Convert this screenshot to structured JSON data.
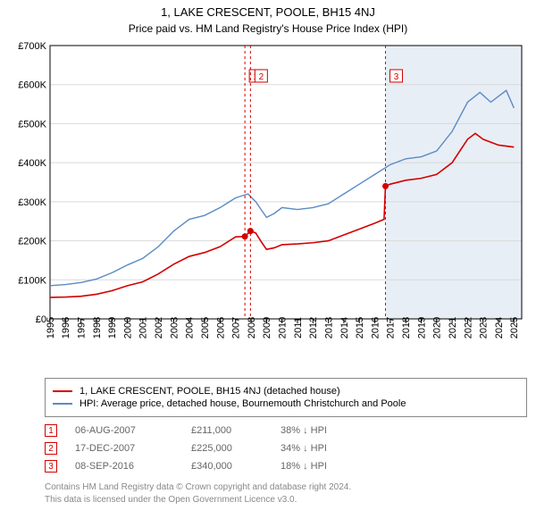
{
  "title": {
    "line1": "1, LAKE CRESCENT, POOLE, BH15 4NJ",
    "line2": "Price paid vs. HM Land Registry's House Price Index (HPI)"
  },
  "chart": {
    "type": "line",
    "background_color": "#ffffff",
    "shade_color": "#e8eef5",
    "shade_start_x": 2016.7,
    "grid_color": "#d9d9d9",
    "axis_color": "#000000",
    "label_fontsize": 11,
    "xlim": [
      1995,
      2025.5
    ],
    "ylim": [
      0,
      700000
    ],
    "ytick_step": 100000,
    "yticks": [
      "£0",
      "£100K",
      "£200K",
      "£300K",
      "£400K",
      "£500K",
      "£600K",
      "£700K"
    ],
    "xticks": [
      1995,
      1996,
      1997,
      1998,
      1999,
      2000,
      2001,
      2002,
      2003,
      2004,
      2005,
      2006,
      2007,
      2008,
      2009,
      2010,
      2011,
      2012,
      2013,
      2014,
      2015,
      2016,
      2017,
      2018,
      2019,
      2020,
      2021,
      2022,
      2023,
      2024,
      2025
    ],
    "series": [
      {
        "name": "property",
        "color": "#d40000",
        "width": 1.6,
        "points": [
          [
            1995,
            55000
          ],
          [
            1996,
            56000
          ],
          [
            1997,
            58000
          ],
          [
            1998,
            63000
          ],
          [
            1999,
            72000
          ],
          [
            2000,
            85000
          ],
          [
            2001,
            95000
          ],
          [
            2002,
            115000
          ],
          [
            2003,
            140000
          ],
          [
            2004,
            160000
          ],
          [
            2005,
            170000
          ],
          [
            2006,
            185000
          ],
          [
            2007,
            210000
          ],
          [
            2007.6,
            211000
          ],
          [
            2007.96,
            225000
          ],
          [
            2008.3,
            220000
          ],
          [
            2008.7,
            195000
          ],
          [
            2009,
            178000
          ],
          [
            2009.5,
            182000
          ],
          [
            2010,
            190000
          ],
          [
            2011,
            192000
          ],
          [
            2012,
            195000
          ],
          [
            2013,
            200000
          ],
          [
            2014,
            215000
          ],
          [
            2015,
            230000
          ],
          [
            2016,
            245000
          ],
          [
            2016.6,
            255000
          ],
          [
            2016.69,
            340000
          ],
          [
            2017,
            345000
          ],
          [
            2018,
            355000
          ],
          [
            2019,
            360000
          ],
          [
            2020,
            370000
          ],
          [
            2021,
            400000
          ],
          [
            2022,
            460000
          ],
          [
            2022.5,
            475000
          ],
          [
            2023,
            460000
          ],
          [
            2024,
            445000
          ],
          [
            2025,
            440000
          ]
        ]
      },
      {
        "name": "hpi",
        "color": "#5b8bc4",
        "width": 1.4,
        "points": [
          [
            1995,
            85000
          ],
          [
            1996,
            88000
          ],
          [
            1997,
            93000
          ],
          [
            1998,
            102000
          ],
          [
            1999,
            118000
          ],
          [
            2000,
            138000
          ],
          [
            2001,
            155000
          ],
          [
            2002,
            185000
          ],
          [
            2003,
            225000
          ],
          [
            2004,
            255000
          ],
          [
            2005,
            265000
          ],
          [
            2006,
            285000
          ],
          [
            2007,
            310000
          ],
          [
            2007.8,
            320000
          ],
          [
            2008.3,
            300000
          ],
          [
            2009,
            260000
          ],
          [
            2009.5,
            270000
          ],
          [
            2010,
            285000
          ],
          [
            2011,
            280000
          ],
          [
            2012,
            285000
          ],
          [
            2013,
            295000
          ],
          [
            2014,
            320000
          ],
          [
            2015,
            345000
          ],
          [
            2016,
            370000
          ],
          [
            2017,
            395000
          ],
          [
            2018,
            410000
          ],
          [
            2019,
            415000
          ],
          [
            2020,
            430000
          ],
          [
            2021,
            480000
          ],
          [
            2022,
            555000
          ],
          [
            2022.8,
            580000
          ],
          [
            2023.5,
            555000
          ],
          [
            2024,
            570000
          ],
          [
            2024.5,
            585000
          ],
          [
            2025,
            540000
          ]
        ]
      }
    ],
    "sale_markers": [
      {
        "n": "1",
        "x": 2007.6,
        "y": 211000,
        "label_y": 620000,
        "color": "#d40000"
      },
      {
        "n": "2",
        "x": 2007.96,
        "y": 225000,
        "label_y": 620000,
        "color": "#d40000"
      },
      {
        "n": "3",
        "x": 2016.69,
        "y": 340000,
        "label_y": 620000,
        "color": "#d40000"
      }
    ]
  },
  "legend": {
    "items": [
      {
        "color": "#d40000",
        "label": "1, LAKE CRESCENT, POOLE, BH15 4NJ (detached house)"
      },
      {
        "color": "#5b8bc4",
        "label": "HPI: Average price, detached house, Bournemouth Christchurch and Poole"
      }
    ]
  },
  "sales": [
    {
      "n": "1",
      "color": "#d40000",
      "date": "06-AUG-2007",
      "price": "£211,000",
      "diff": "38% ↓ HPI"
    },
    {
      "n": "2",
      "color": "#d40000",
      "date": "17-DEC-2007",
      "price": "£225,000",
      "diff": "34% ↓ HPI"
    },
    {
      "n": "3",
      "color": "#d40000",
      "date": "08-SEP-2016",
      "price": "£340,000",
      "diff": "18% ↓ HPI"
    }
  ],
  "footer": {
    "line1": "Contains HM Land Registry data © Crown copyright and database right 2024.",
    "line2": "This data is licensed under the Open Government Licence v3.0."
  }
}
